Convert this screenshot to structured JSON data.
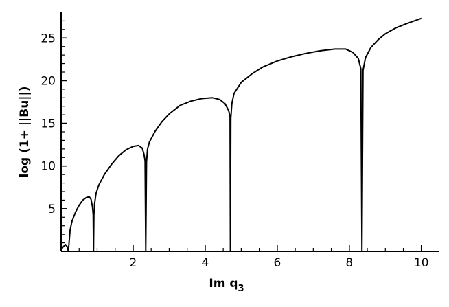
{
  "chart_data": {
    "type": "line",
    "title": "",
    "xlabel": "Im q",
    "xlabel_sub": "3",
    "ylabel": "log (1+ ||Bu||)",
    "xlim": [
      0,
      10.5
    ],
    "ylim": [
      0,
      28
    ],
    "xticks": [
      2,
      4,
      6,
      8,
      10
    ],
    "yticks": [
      5,
      10,
      15,
      20,
      25
    ],
    "xtick_labels": [
      "2",
      "4",
      "6",
      "8",
      "10"
    ],
    "ytick_labels": [
      "5",
      "10",
      "15",
      "20",
      "25"
    ],
    "grid": false,
    "dips": [
      0.9,
      2.35,
      4.7,
      8.35
    ],
    "series": [
      {
        "x": [
          0.0,
          0.05,
          0.12,
          0.18,
          0.2,
          0.25,
          0.3,
          0.4,
          0.5,
          0.6,
          0.7,
          0.78,
          0.83,
          0.87,
          0.89,
          0.9,
          0.91,
          0.93,
          0.97,
          1.05,
          1.2,
          1.4,
          1.6,
          1.8,
          2.0,
          2.15,
          2.25,
          2.3,
          2.33,
          2.35,
          2.37,
          2.4,
          2.45,
          2.6,
          2.8,
          3.0,
          3.3,
          3.6,
          3.9,
          4.2,
          4.4,
          4.55,
          4.65,
          4.69,
          4.7,
          4.71,
          4.74,
          4.8,
          5.0,
          5.3,
          5.6,
          6.0,
          6.4,
          6.8,
          7.2,
          7.6,
          7.9,
          8.1,
          8.25,
          8.32,
          8.35,
          8.38,
          8.45,
          8.6,
          8.8,
          9.0,
          9.3,
          9.6,
          10.0
        ],
        "y": [
          0.2,
          0.5,
          0.8,
          0.5,
          0.0,
          2.5,
          3.5,
          4.6,
          5.4,
          6.0,
          6.3,
          6.4,
          6.1,
          5.2,
          4.3,
          0.0,
          4.3,
          5.6,
          6.8,
          7.8,
          9.0,
          10.2,
          11.2,
          11.9,
          12.3,
          12.4,
          12.1,
          11.4,
          10.6,
          0.0,
          10.5,
          12.0,
          12.8,
          14.0,
          15.2,
          16.1,
          17.1,
          17.6,
          17.9,
          18.0,
          17.8,
          17.3,
          16.5,
          15.8,
          0.0,
          15.6,
          17.3,
          18.5,
          19.8,
          20.8,
          21.6,
          22.3,
          22.8,
          23.2,
          23.5,
          23.7,
          23.7,
          23.3,
          22.6,
          21.4,
          0.0,
          21.2,
          22.7,
          23.9,
          24.8,
          25.5,
          26.2,
          26.7,
          27.3
        ]
      }
    ]
  }
}
